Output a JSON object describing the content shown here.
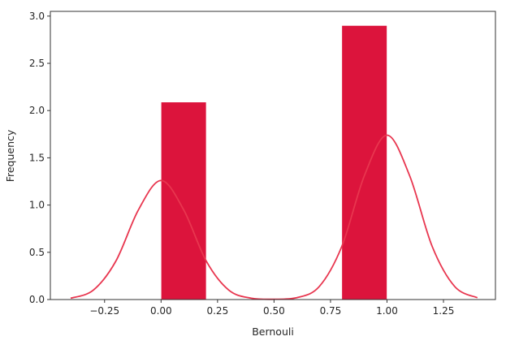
{
  "chart_data": {
    "type": "bar",
    "title": "",
    "xlabel": "Bernouli",
    "ylabel": "Frequency",
    "xlim": [
      -0.49,
      1.48
    ],
    "ylim": [
      0,
      3.05
    ],
    "grid": false,
    "xticks": [
      "−0.25",
      "0.00",
      "0.25",
      "0.50",
      "0.75",
      "1.00",
      "1.25"
    ],
    "xtick_values": [
      -0.25,
      0,
      0.25,
      0.5,
      0.75,
      1.0,
      1.25
    ],
    "yticks": [
      "0.0",
      "0.5",
      "1.0",
      "1.5",
      "2.0",
      "2.5",
      "3.0"
    ],
    "ytick_values": [
      0,
      0.5,
      1.0,
      1.5,
      2.0,
      2.5,
      3.0
    ],
    "bars": [
      {
        "x0": 0.0,
        "x1": 0.2,
        "value": 2.09
      },
      {
        "x0": 0.8,
        "x1": 1.0,
        "value": 2.9
      }
    ],
    "kde": {
      "x": [
        -0.4,
        -0.3,
        -0.2,
        -0.1,
        0.0,
        0.1,
        0.2,
        0.3,
        0.4,
        0.5,
        0.6,
        0.7,
        0.8,
        0.9,
        1.0,
        1.1,
        1.2,
        1.3,
        1.4
      ],
      "y": [
        0.014,
        0.099,
        0.407,
        0.95,
        1.26,
        0.95,
        0.407,
        0.099,
        0.014,
        0.003,
        0.019,
        0.137,
        0.562,
        1.312,
        1.74,
        1.312,
        0.562,
        0.137,
        0.019
      ]
    },
    "colors": {
      "bar": "#dc143c",
      "kde": "#e8364f"
    }
  }
}
